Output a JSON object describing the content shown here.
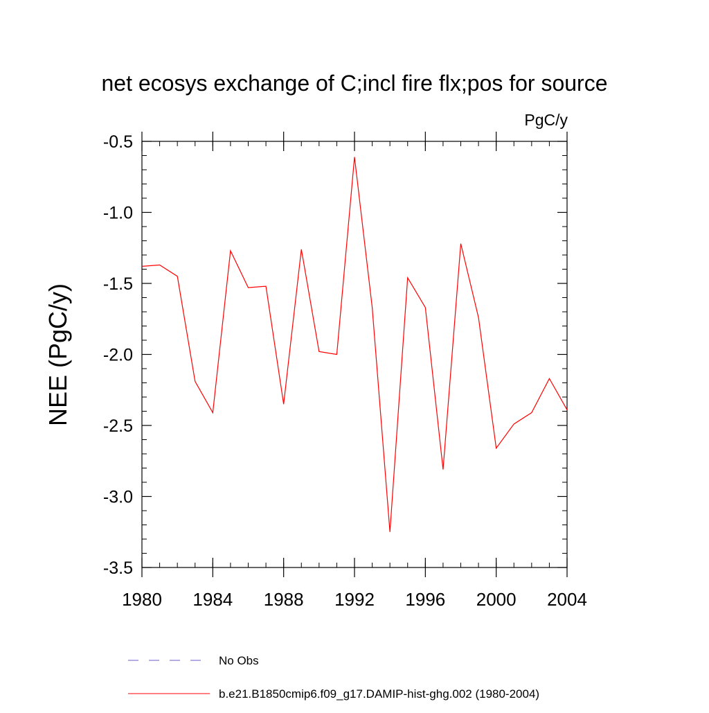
{
  "chart_data": {
    "type": "line",
    "title": "net ecosys exchange of C;incl fire flx;pos for source",
    "units": "PgC/y",
    "ylabel": "NEE  (PgC/y)",
    "xlabel": "",
    "xlim": [
      1980,
      2004
    ],
    "ylim": [
      -3.5,
      -0.5
    ],
    "xticks": [
      1980,
      1984,
      1988,
      1992,
      1996,
      2000,
      2004
    ],
    "yticks": [
      -0.5,
      -1.0,
      -1.5,
      -2.0,
      -2.5,
      -3.0,
      -3.5
    ],
    "ytick_labels": [
      "-0.5",
      "-1.0",
      "-1.5",
      "-2.0",
      "-2.5",
      "-3.0",
      "-3.5"
    ],
    "x": [
      1980,
      1981,
      1982,
      1983,
      1984,
      1985,
      1986,
      1987,
      1988,
      1989,
      1990,
      1991,
      1992,
      1993,
      1994,
      1995,
      1996,
      1997,
      1998,
      1999,
      2000,
      2001,
      2002,
      2003,
      2004
    ],
    "series": [
      {
        "name": "b.e21.B1850cmip6.f09_g17.DAMIP-hist-ghg.002 (1980-2004)",
        "color": "#ff0000",
        "style": "solid",
        "values": [
          -1.38,
          -1.37,
          -1.45,
          -2.19,
          -2.41,
          -1.27,
          -1.53,
          -1.52,
          -2.35,
          -1.26,
          -1.98,
          -2.0,
          -0.61,
          -1.67,
          -3.25,
          -1.46,
          -1.67,
          -2.81,
          -1.22,
          -1.74,
          -2.66,
          -2.49,
          -2.41,
          -2.17,
          -2.39
        ]
      }
    ],
    "legend": [
      {
        "label": "No Obs",
        "color": "#6a5acd",
        "style": "dashed"
      },
      {
        "label": "b.e21.B1850cmip6.f09_g17.DAMIP-hist-ghg.002 (1980-2004)",
        "color": "#ff0000",
        "style": "solid"
      }
    ],
    "legend_position": "bottom",
    "grid": false
  }
}
